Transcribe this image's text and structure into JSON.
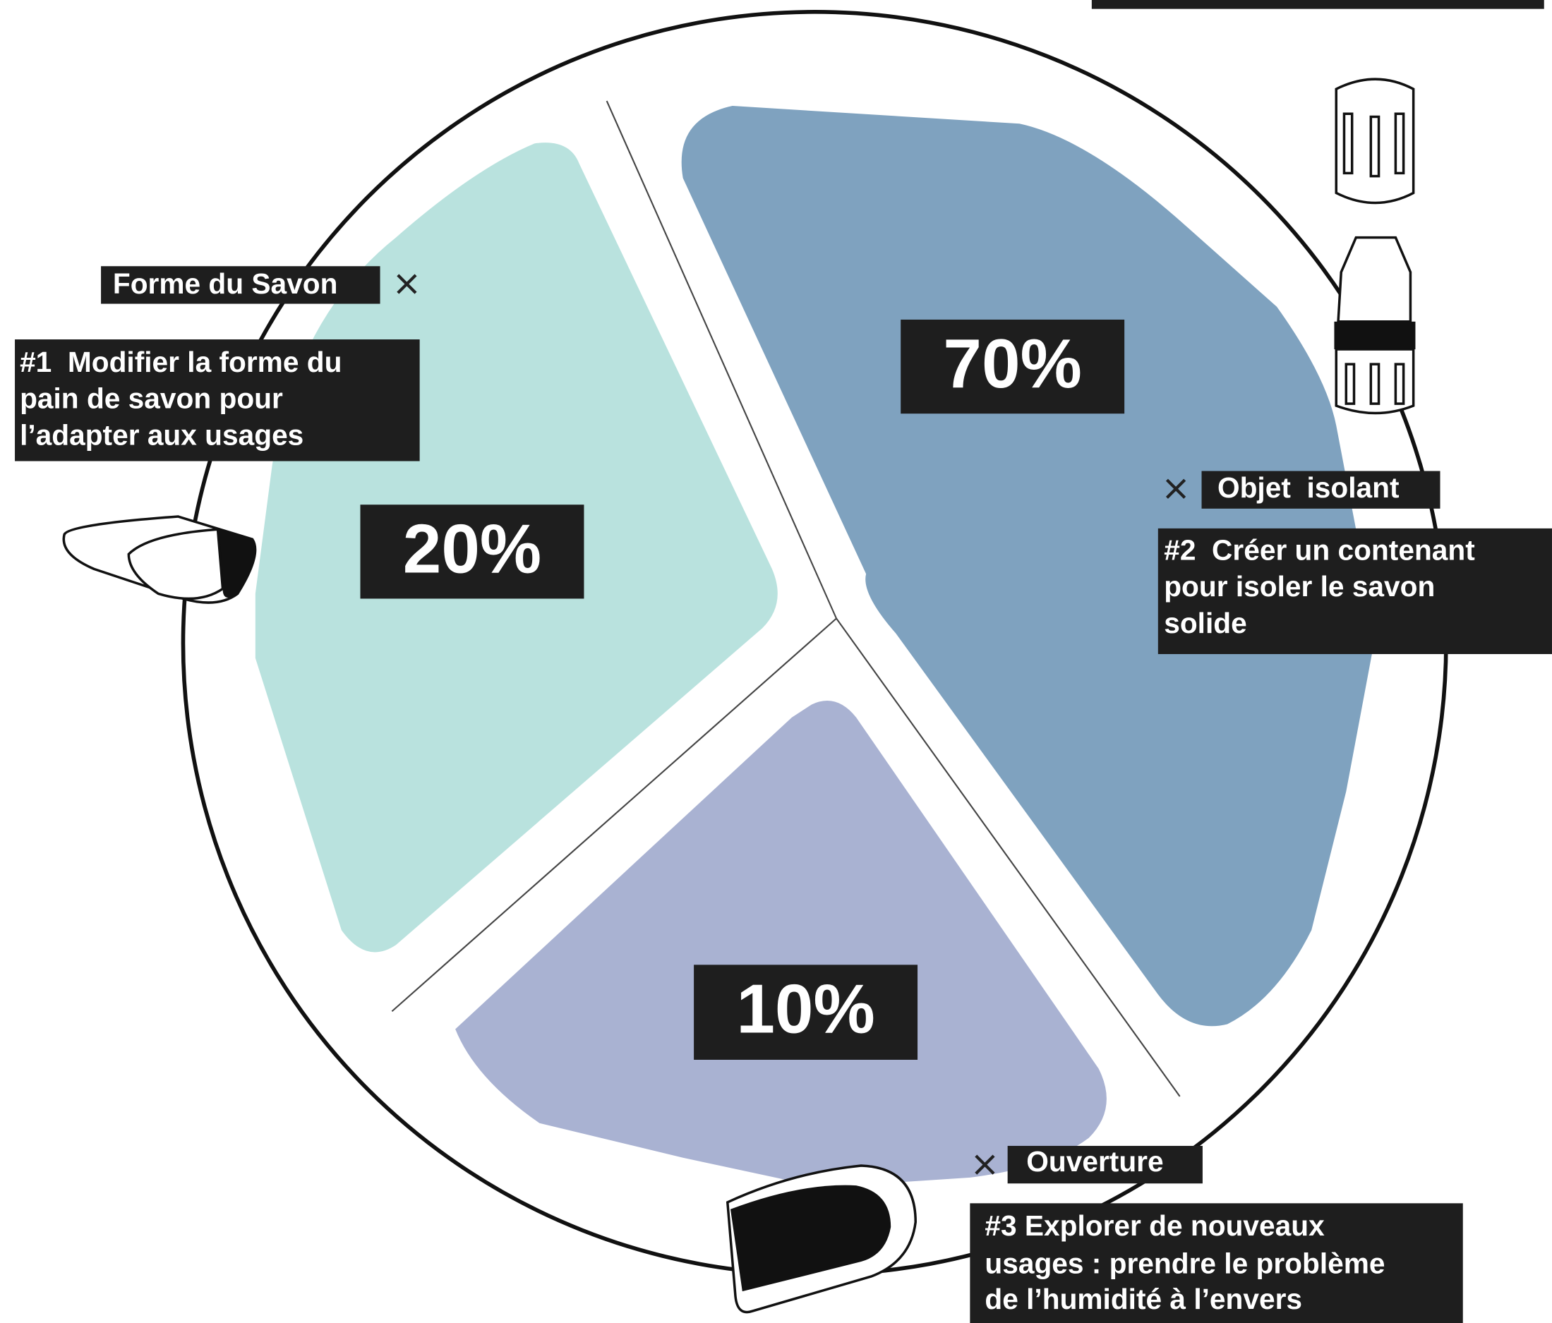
{
  "segments": [
    {
      "percent": "20%",
      "tag": "Forme du Savon",
      "lines": [
        "#1  Modifier la forme du",
        "pain de savon pour",
        "l’adapter aux usages"
      ]
    },
    {
      "percent": "70%",
      "tag": "Objet  isolant",
      "lines": [
        "#2  Créer un contenant",
        "pour isoler le savon",
        "solide"
      ]
    },
    {
      "percent": "10%",
      "tag": "Ouverture",
      "lines": [
        "#3 Explorer de nouveaux",
        "usages : prendre le problème",
        "de l’humidité à l’envers"
      ]
    }
  ]
}
